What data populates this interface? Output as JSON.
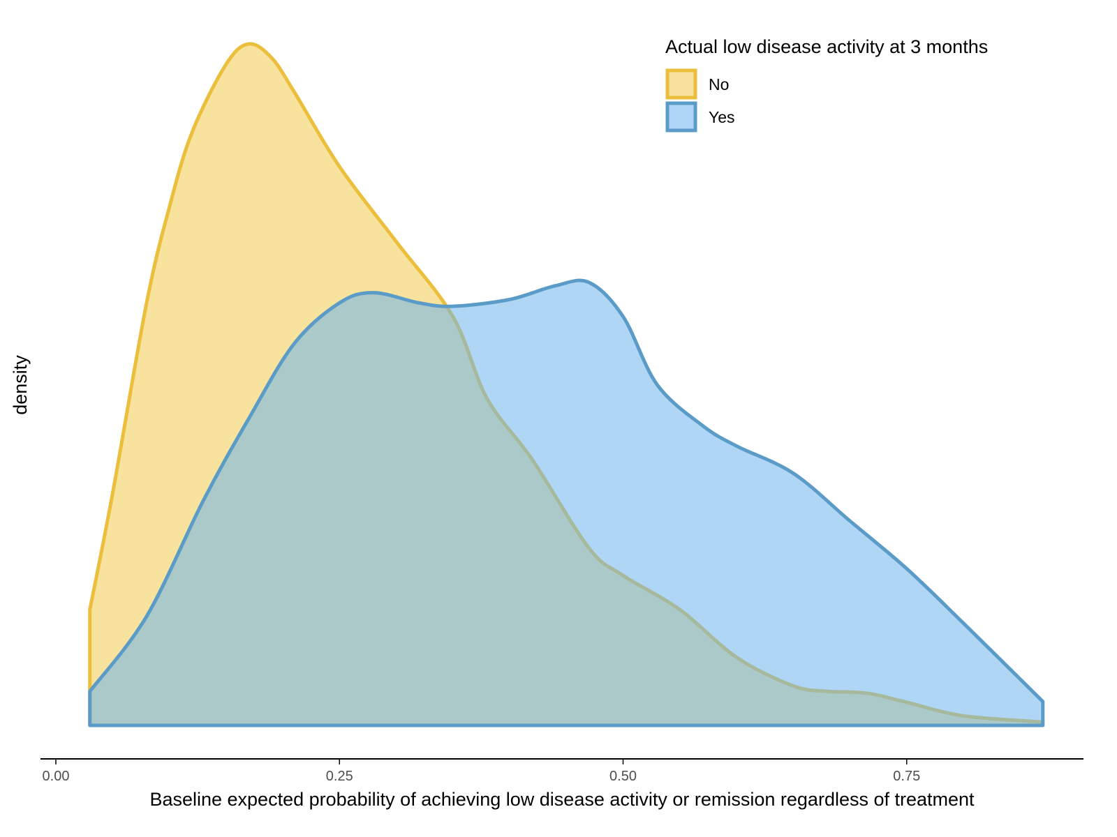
{
  "chart_data": {
    "type": "area",
    "subtype": "density",
    "xlabel": "Baseline expected probability of achieving low disease activity or remission regardless of treatment",
    "ylabel": "density",
    "xlim": [
      -0.025,
      0.91
    ],
    "ylim": [
      0,
      1.0
    ],
    "x_ticks": [
      0.0,
      0.25,
      0.5,
      0.75
    ],
    "x_tick_labels": [
      "0.00",
      "0.25",
      "0.50",
      "0.75"
    ],
    "grid": false,
    "y_ticks_shown": false,
    "legend": {
      "title": "Actual low disease activity at 3 months",
      "position": "top-right"
    },
    "series": [
      {
        "name": "No",
        "stroke_color": "#EBBE3C",
        "fill_color": "#F0C83C",
        "fill_opacity": 0.5,
        "x": [
          0.03,
          0.05,
          0.08,
          0.1,
          0.12,
          0.15,
          0.17,
          0.19,
          0.21,
          0.25,
          0.3,
          0.35,
          0.38,
          0.42,
          0.47,
          0.5,
          0.55,
          0.6,
          0.65,
          0.68,
          0.7,
          0.72,
          0.75,
          0.8,
          0.87
        ],
        "y": [
          0.17,
          0.34,
          0.62,
          0.76,
          0.87,
          0.97,
          1.0,
          0.98,
          0.93,
          0.82,
          0.71,
          0.6,
          0.48,
          0.39,
          0.26,
          0.22,
          0.17,
          0.1,
          0.058,
          0.05,
          0.049,
          0.046,
          0.034,
          0.014,
          0.005
        ]
      },
      {
        "name": "Yes",
        "stroke_color": "#5B9BC8",
        "fill_color": "#6EB4EB",
        "fill_opacity": 0.55,
        "x": [
          0.03,
          0.08,
          0.13,
          0.17,
          0.21,
          0.25,
          0.28,
          0.32,
          0.35,
          0.4,
          0.44,
          0.47,
          0.5,
          0.53,
          0.57,
          0.6,
          0.65,
          0.7,
          0.75,
          0.8,
          0.87
        ],
        "y": [
          0.05,
          0.16,
          0.33,
          0.45,
          0.56,
          0.62,
          0.635,
          0.62,
          0.615,
          0.625,
          0.645,
          0.65,
          0.6,
          0.5,
          0.44,
          0.41,
          0.37,
          0.3,
          0.23,
          0.15,
          0.035
        ]
      }
    ]
  }
}
